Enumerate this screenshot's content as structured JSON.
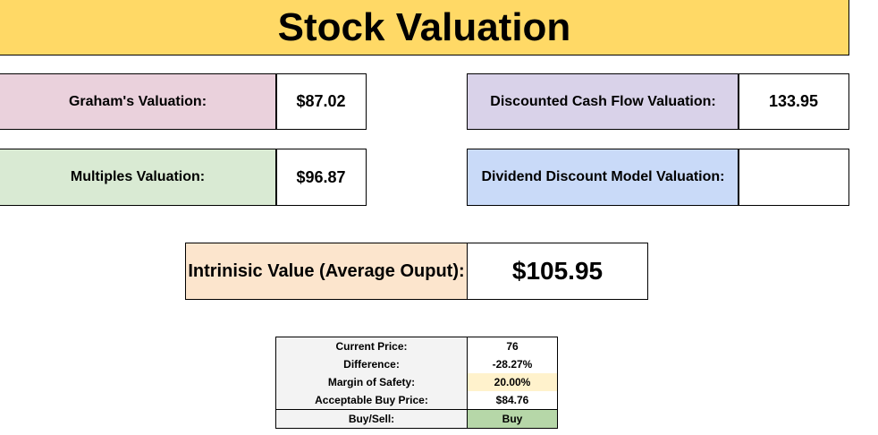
{
  "title": "Stock Valuation",
  "colors": {
    "title_bg": "#ffd966",
    "graham_bg": "#ead1dc",
    "multiples_bg": "#d9ead3",
    "dcf_bg": "#d9d2e9",
    "ddm_bg": "#c9daf8",
    "intrinsic_bg": "#fce5cd",
    "margin_bg": "#fff2cc",
    "buy_bg": "#b6d7a8",
    "label_bg": "#f3f3f3",
    "selection_handle": "#1a73e8"
  },
  "valuations": {
    "graham": {
      "label": "Graham's Valuation:",
      "value": "$87.02"
    },
    "multiples": {
      "label": "Multiples Valuation:",
      "value": "$96.87"
    },
    "dcf": {
      "label": "Discounted Cash Flow Valuation:",
      "value": "133.95"
    },
    "ddm": {
      "label": "Dividend Discount Model Valuation:",
      "value": ""
    }
  },
  "intrinsic": {
    "label": "Intrinisic Value (Average Ouput):",
    "value": "$105.95"
  },
  "summary": [
    {
      "label": "Current Price:",
      "value": "76"
    },
    {
      "label": "Difference:",
      "value": "-28.27%"
    },
    {
      "label": "Margin of Safety:",
      "value": "20.00%"
    },
    {
      "label": "Acceptable Buy Price:",
      "value": "$84.76"
    },
    {
      "label": "Buy/Sell:",
      "value": "Buy"
    }
  ]
}
